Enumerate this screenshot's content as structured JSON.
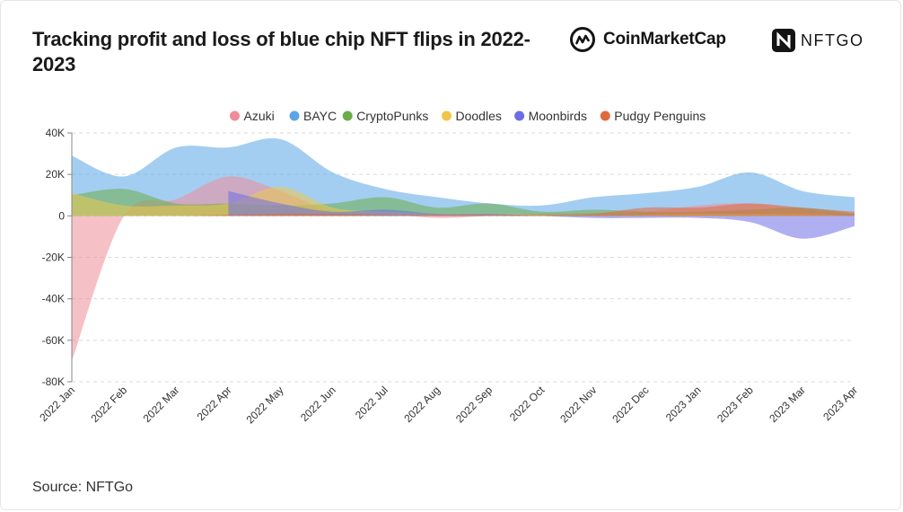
{
  "header": {
    "title": "Tracking profit and loss of blue chip NFT flips in 2022-2023",
    "brand_primary": "CoinMarketCap",
    "brand_secondary": "NFTGO"
  },
  "footer": {
    "source": "Source: NFTGo"
  },
  "colors": {
    "Azuki": "#ee8d99",
    "BAYC": "#5aa5e6",
    "CryptoPunks": "#6cad4a",
    "Doodles": "#efc64a",
    "Moonbirds": "#6d6ee6",
    "Pudgy Penguins": "#e06a3c",
    "brand_cmc": "#141414",
    "grid": "#d9d9d9"
  },
  "chart_data": {
    "type": "area",
    "title": "Tracking profit and loss of blue chip NFT flips in 2022-2023",
    "xlabel": "",
    "ylabel": "",
    "ylim": [
      -80000,
      40000
    ],
    "yticks": [
      40000,
      20000,
      0,
      -20000,
      -40000,
      -60000,
      -80000
    ],
    "ytick_labels": [
      "40K",
      "20K",
      "0",
      "-20K",
      "-40K",
      "-60K",
      "-80K"
    ],
    "legend_position": "top-center",
    "grid": true,
    "x": [
      "2022 Jan",
      "2022 Feb",
      "2022 Mar",
      "2022 Apr",
      "2022 May",
      "2022 Jun",
      "2022 Jul",
      "2022 Aug",
      "2022 Sep",
      "2022 Oct",
      "2022 Nov",
      "2022 Dec",
      "2023 Jan",
      "2023 Feb",
      "2023 Mar",
      "2023 Apr"
    ],
    "series": [
      {
        "name": "BAYC",
        "values": [
          29000,
          19000,
          33000,
          33000,
          37000,
          21000,
          13000,
          9000,
          6000,
          5000,
          9000,
          11000,
          14000,
          21000,
          12000,
          9000
        ]
      },
      {
        "name": "Azuki",
        "values": [
          -70000,
          0,
          8000,
          19000,
          12000,
          2000,
          1000,
          -1000,
          0,
          1000,
          1500,
          2000,
          5000,
          6000,
          3000,
          1000
        ]
      },
      {
        "name": "CryptoPunks",
        "values": [
          10000,
          13000,
          6000,
          6000,
          5000,
          6000,
          9000,
          4000,
          6000,
          2000,
          3000,
          2000,
          2000,
          3000,
          4000,
          1000
        ]
      },
      {
        "name": "Doodles",
        "values": [
          11000,
          5000,
          5000,
          6000,
          14000,
          4000,
          2000,
          1000,
          1000,
          500,
          0,
          500,
          1000,
          1000,
          1000,
          0
        ]
      },
      {
        "name": "Moonbirds",
        "values": [
          null,
          null,
          null,
          12000,
          6000,
          2000,
          3000,
          1000,
          1000,
          0,
          -1000,
          -1000,
          -1000,
          -3000,
          -11000,
          -5000
        ]
      },
      {
        "name": "Pudgy Penguins",
        "values": [
          0,
          0,
          0,
          500,
          1000,
          1000,
          500,
          500,
          500,
          500,
          1000,
          4000,
          4000,
          6000,
          4000,
          2000
        ]
      }
    ]
  }
}
